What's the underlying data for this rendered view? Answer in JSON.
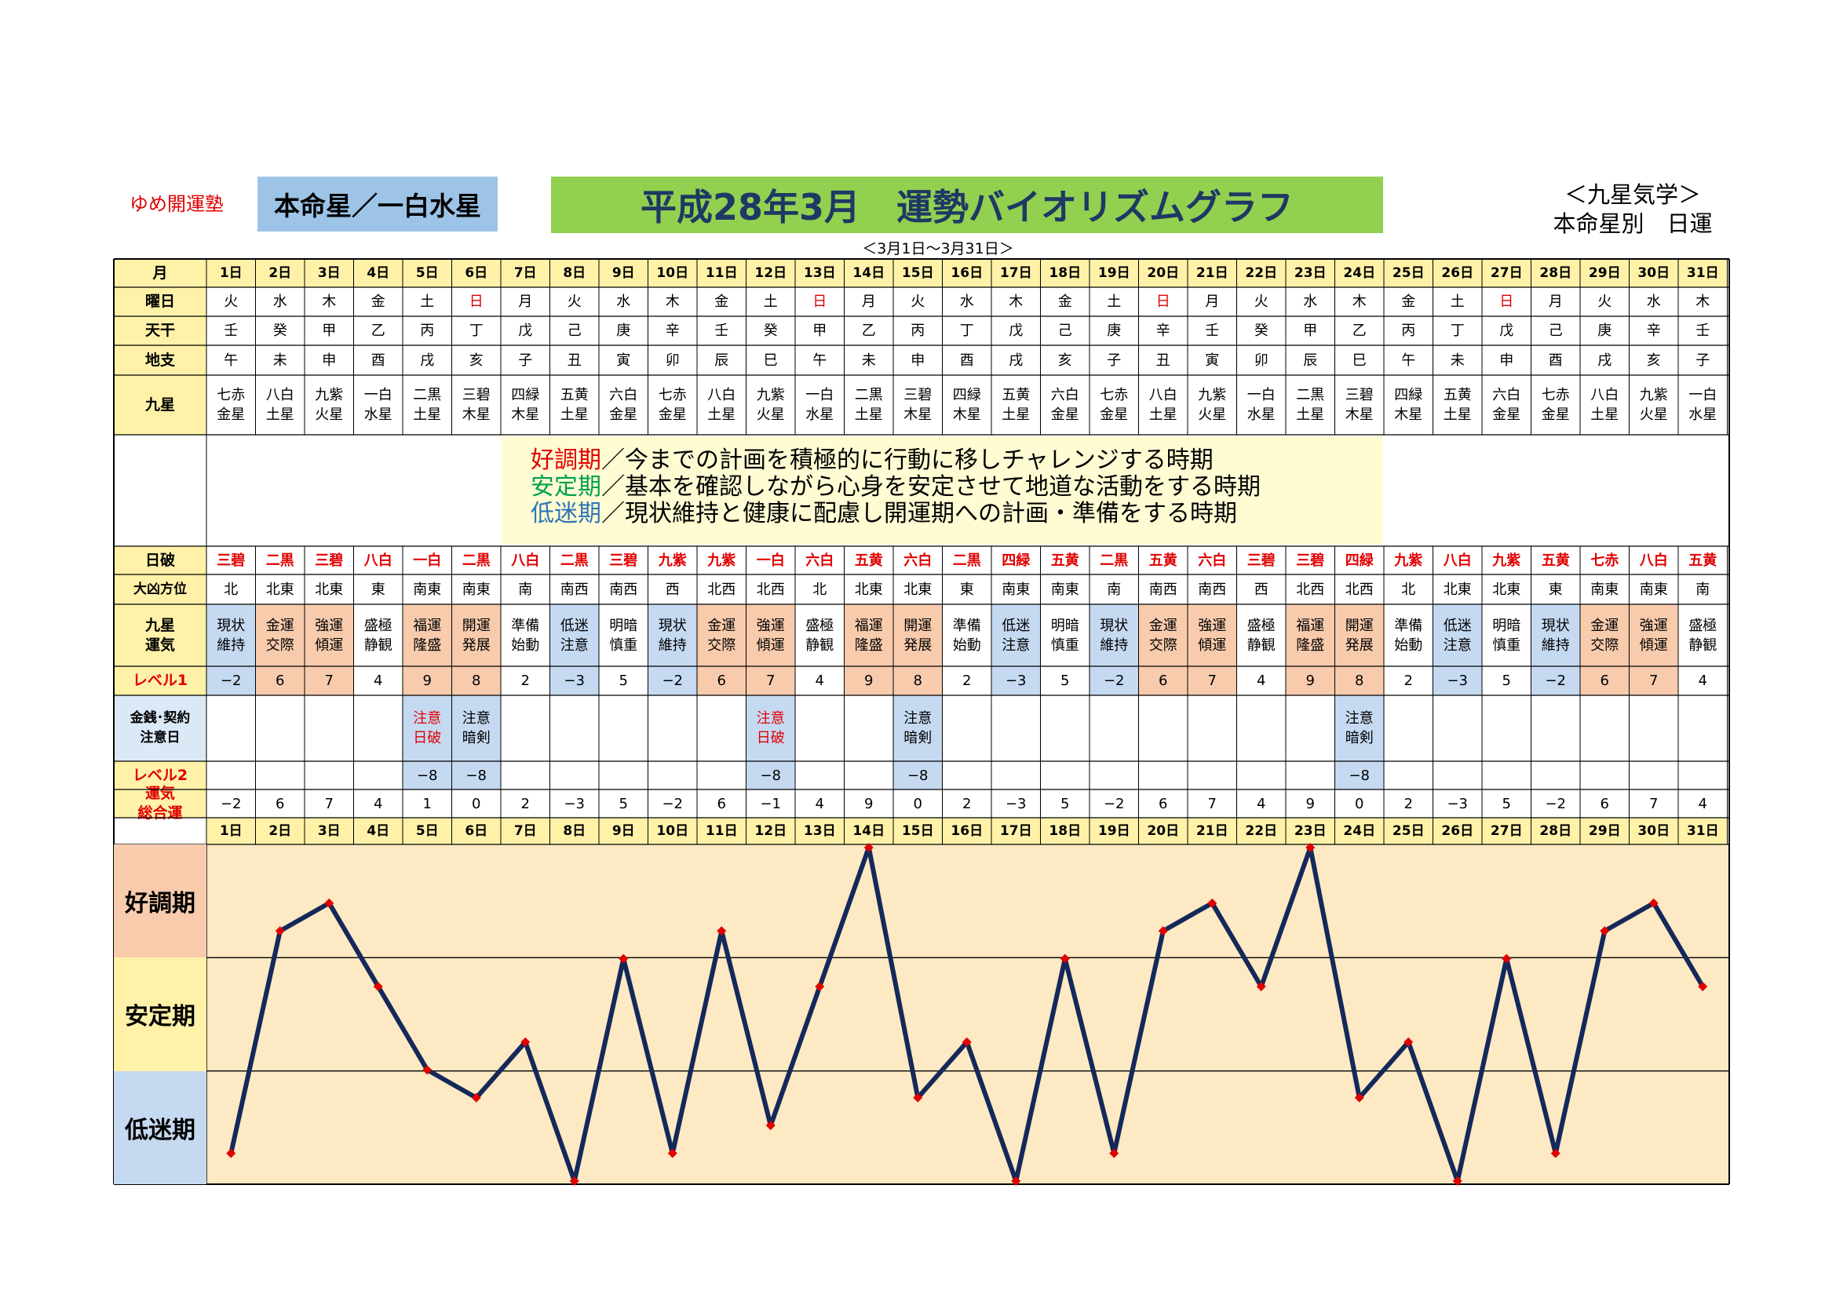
{
  "header": {
    "school": "ゆめ開運塾",
    "honmeisei": "本命星／一白水星",
    "title": "平成28年3月　運勢バイオリズムグラフ",
    "date_range": "＜3月1日～3月31日＞",
    "corner_line1": "＜九星気学＞",
    "corner_line2": "本命星別　日運"
  },
  "colors": {
    "title_bg": "#92d050",
    "star_bg": "#9dc3e6",
    "label_bg": "#fff2a8",
    "good": "#f8cbad",
    "bad": "#c5d9f1",
    "chart_bg": "#fde9c3",
    "line": "#14285a",
    "marker": "#e00000"
  },
  "row_labels": {
    "month": "月",
    "weekday": "曜日",
    "tenkan": "天干",
    "chishi": "地支",
    "kyusei": "九星",
    "nippa": "日破",
    "daikyo": "大凶方位",
    "kiun": "九星\n運気",
    "level1": "レベル1",
    "caution": "金銭･契約\n注意日",
    "level2": "レベル2",
    "total": "運気\n総合運"
  },
  "legend": [
    {
      "key": "好調期",
      "text": "／今までの計画を積極的に行動に移しチャレンジする時期",
      "color": "red"
    },
    {
      "key": "安定期",
      "text": "／基本を確認しながら心身を安定させて地道な活動をする時期",
      "color": "green"
    },
    {
      "key": "低迷期",
      "text": "／現状維持と健康に配慮し開運期への計画・準備をする時期",
      "color": "blue"
    }
  ],
  "zones": [
    "好調期",
    "安定期",
    "低迷期"
  ],
  "days": [
    "1日",
    "2日",
    "3日",
    "4日",
    "5日",
    "6日",
    "7日",
    "8日",
    "9日",
    "10日",
    "11日",
    "12日",
    "13日",
    "14日",
    "15日",
    "16日",
    "17日",
    "18日",
    "19日",
    "20日",
    "21日",
    "22日",
    "23日",
    "24日",
    "25日",
    "26日",
    "27日",
    "28日",
    "29日",
    "30日",
    "31日"
  ],
  "weekday": [
    "火",
    "水",
    "木",
    "金",
    "土",
    "日",
    "月",
    "火",
    "水",
    "木",
    "金",
    "土",
    "日",
    "月",
    "火",
    "水",
    "木",
    "金",
    "土",
    "日",
    "月",
    "火",
    "水",
    "木",
    "金",
    "土",
    "日",
    "月",
    "火",
    "水",
    "木"
  ],
  "tenkan": [
    "壬",
    "癸",
    "甲",
    "乙",
    "丙",
    "丁",
    "戊",
    "己",
    "庚",
    "辛",
    "壬",
    "癸",
    "甲",
    "乙",
    "丙",
    "丁",
    "戊",
    "己",
    "庚",
    "辛",
    "壬",
    "癸",
    "甲",
    "乙",
    "丙",
    "丁",
    "戊",
    "己",
    "庚",
    "辛",
    "壬"
  ],
  "chishi": [
    "午",
    "未",
    "申",
    "酉",
    "戌",
    "亥",
    "子",
    "丑",
    "寅",
    "卯",
    "辰",
    "巳",
    "午",
    "未",
    "申",
    "酉",
    "戌",
    "亥",
    "子",
    "丑",
    "寅",
    "卯",
    "辰",
    "巳",
    "午",
    "未",
    "申",
    "酉",
    "戌",
    "亥",
    "子"
  ],
  "kyusei": [
    "七赤\n金星",
    "八白\n土星",
    "九紫\n火星",
    "一白\n水星",
    "二黒\n土星",
    "三碧\n木星",
    "四緑\n木星",
    "五黄\n土星",
    "六白\n金星",
    "七赤\n金星",
    "八白\n土星",
    "九紫\n火星",
    "一白\n水星",
    "二黒\n土星",
    "三碧\n木星",
    "四緑\n木星",
    "五黄\n土星",
    "六白\n金星",
    "七赤\n金星",
    "八白\n土星",
    "九紫\n火星",
    "一白\n水星",
    "二黒\n土星",
    "三碧\n木星",
    "四緑\n木星",
    "五黄\n土星",
    "六白\n金星",
    "七赤\n金星",
    "八白\n土星",
    "九紫\n火星",
    "一白\n水星"
  ],
  "nippa": [
    "三碧",
    "二黒",
    "三碧",
    "八白",
    "一白",
    "二黒",
    "八白",
    "二黒",
    "三碧",
    "九紫",
    "九紫",
    "一白",
    "六白",
    "五黄",
    "六白",
    "二黒",
    "四緑",
    "五黄",
    "二黒",
    "五黄",
    "六白",
    "三碧",
    "三碧",
    "四緑",
    "九紫",
    "八白",
    "九紫",
    "五黄",
    "七赤",
    "八白",
    "五黄"
  ],
  "daikyo": [
    "北",
    "北東",
    "北東",
    "東",
    "南東",
    "南東",
    "南",
    "南西",
    "南西",
    "西",
    "北西",
    "北西",
    "北",
    "北東",
    "北東",
    "東",
    "南東",
    "南東",
    "南",
    "南西",
    "南西",
    "西",
    "北西",
    "北西",
    "北",
    "北東",
    "北東",
    "東",
    "南東",
    "南東",
    "南"
  ],
  "kiun": [
    "現状\n維持",
    "金運\n交際",
    "強運\n傾運",
    "盛極\n静観",
    "福運\n隆盛",
    "開運\n発展",
    "準備\n始動",
    "低迷\n注意",
    "明暗\n慎重",
    "現状\n維持",
    "金運\n交際",
    "強運\n傾運",
    "盛極\n静観",
    "福運\n隆盛",
    "開運\n発展",
    "準備\n始動",
    "低迷\n注意",
    "明暗\n慎重",
    "現状\n維持",
    "金運\n交際",
    "強運\n傾運",
    "盛極\n静観",
    "福運\n隆盛",
    "開運\n発展",
    "準備\n始動",
    "低迷\n注意",
    "明暗\n慎重",
    "現状\n維持",
    "金運\n交際",
    "強運\n傾運",
    "盛極\n静観"
  ],
  "level1": [
    "−2",
    "6",
    "7",
    "4",
    "9",
    "8",
    "2",
    "−3",
    "5",
    "−2",
    "6",
    "7",
    "4",
    "9",
    "8",
    "2",
    "−3",
    "5",
    "−2",
    "6",
    "7",
    "4",
    "9",
    "8",
    "2",
    "−3",
    "5",
    "−2",
    "6",
    "7",
    "4"
  ],
  "caution": [
    "",
    "",
    "",
    "",
    "注意\n日破",
    "注意\n暗剣",
    "",
    "",
    "",
    "",
    "",
    "注意\n日破",
    "",
    "",
    "注意\n暗剣",
    "",
    "",
    "",
    "",
    "",
    "",
    "",
    "",
    "注意\n暗剣",
    "",
    "",
    "",
    "",
    "",
    "",
    ""
  ],
  "level2": [
    "",
    "",
    "",
    "",
    "−8",
    "−8",
    "",
    "",
    "",
    "",
    "",
    "−8",
    "",
    "",
    "−8",
    "",
    "",
    "",
    "",
    "",
    "",
    "",
    "",
    "−8",
    "",
    "",
    "",
    "",
    "",
    "",
    ""
  ],
  "total": [
    "−2",
    "6",
    "7",
    "4",
    "1",
    "0",
    "2",
    "−3",
    "5",
    "−2",
    "6",
    "−1",
    "4",
    "9",
    "0",
    "2",
    "−3",
    "5",
    "−2",
    "6",
    "7",
    "4",
    "9",
    "0",
    "2",
    "−3",
    "5",
    "−2",
    "6",
    "7",
    "4"
  ],
  "chart_data": {
    "type": "line",
    "title": "平成28年3月　運勢バイオリズムグラフ",
    "x": [
      "1日",
      "2日",
      "3日",
      "4日",
      "5日",
      "6日",
      "7日",
      "8日",
      "9日",
      "10日",
      "11日",
      "12日",
      "13日",
      "14日",
      "15日",
      "16日",
      "17日",
      "18日",
      "19日",
      "20日",
      "21日",
      "22日",
      "23日",
      "24日",
      "25日",
      "26日",
      "27日",
      "28日",
      "29日",
      "30日",
      "31日"
    ],
    "series": [
      {
        "name": "運気総合運",
        "values": [
          -2,
          6,
          7,
          4,
          1,
          0,
          2,
          -3,
          5,
          -2,
          6,
          -1,
          4,
          9,
          0,
          2,
          -3,
          5,
          -2,
          6,
          7,
          4,
          9,
          0,
          2,
          -3,
          5,
          -2,
          6,
          7,
          4
        ]
      }
    ],
    "ylim": [
      -3,
      9
    ],
    "grid": true,
    "bands": [
      "好調期",
      "安定期",
      "低迷期"
    ]
  }
}
